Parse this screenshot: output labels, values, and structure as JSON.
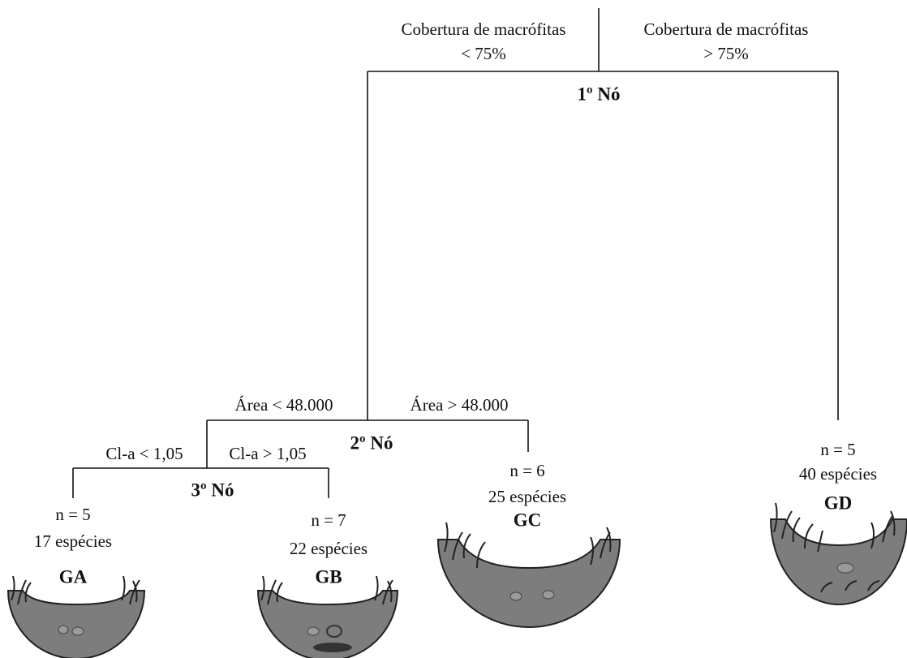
{
  "nodes": [
    {
      "label": "1º Nó",
      "left_condition": [
        "Cobertura de macrófitas",
        "< 75%"
      ],
      "right_condition": [
        "Cobertura de macrófitas",
        "> 75%"
      ]
    },
    {
      "label": "2º Nó",
      "left_condition": "Área < 48.000",
      "right_condition": "Área > 48.000"
    },
    {
      "label": "3º Nó",
      "left_condition": "Cl-a < 1,05",
      "right_condition": "Cl-a > 1,05"
    }
  ],
  "leaves": [
    {
      "n": "n = 5",
      "species": "17 espécies",
      "group": "GA"
    },
    {
      "n": "n = 7",
      "species": "22 espécies",
      "group": "GB"
    },
    {
      "n": "n = 6",
      "species": "25 espécies",
      "group": "GC"
    },
    {
      "n": "n = 5",
      "species": "40 espécies",
      "group": "GD"
    }
  ]
}
